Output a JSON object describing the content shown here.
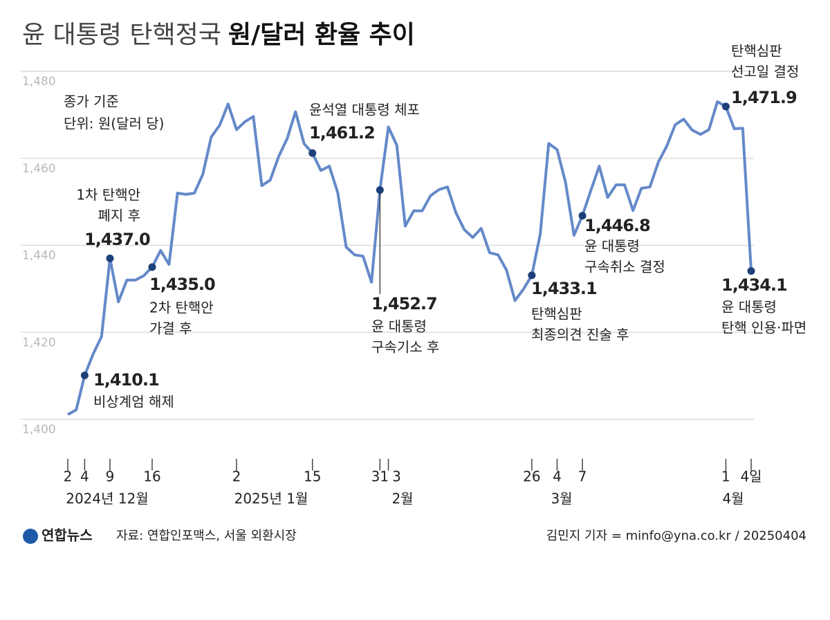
{
  "chart_data": {
    "type": "line",
    "title": {
      "light": "윤 대통령 탄핵정국",
      "bold": "원/달러 환율 추이"
    },
    "notes": [
      "종가 기준",
      "단위: 원(달러 당)"
    ],
    "categories": [
      "2",
      null,
      "4",
      null,
      null,
      "9",
      null,
      null,
      null,
      null,
      "16",
      null,
      null,
      null,
      null,
      null,
      null,
      null,
      null,
      null,
      "2",
      null,
      null,
      null,
      null,
      null,
      null,
      null,
      null,
      "15",
      null,
      null,
      null,
      null,
      null,
      null,
      null,
      "31",
      "3",
      null,
      null,
      null,
      null,
      null,
      null,
      null,
      null,
      null,
      null,
      null,
      null,
      null,
      null,
      null,
      null,
      "26",
      null,
      null,
      "4",
      null,
      null,
      "7",
      null,
      null,
      null,
      null,
      null,
      null,
      null,
      null,
      null,
      null,
      null,
      null,
      null,
      null,
      null,
      null,
      "1",
      null,
      null,
      "4일"
    ],
    "months": [
      "2024년 12월",
      "2025년 1월",
      "2월",
      "3월",
      "4월"
    ],
    "values": [
      1401.1,
      1402.2,
      1410.1,
      1415,
      1419,
      1437.0,
      1427,
      1432,
      1432,
      1433,
      1435.0,
      1438.8,
      1435.6,
      1452,
      1451.7,
      1452,
      1456.3,
      1464.9,
      1467.6,
      1472.5,
      1466.6,
      1468.4,
      1469.6,
      1453.7,
      1455,
      1460.4,
      1464.5,
      1470.7,
      1463.4,
      1461.2,
      1457.2,
      1458.2,
      1452.1,
      1439.6,
      1437.8,
      1437.5,
      1431.5,
      1452.7,
      1467.2,
      1463,
      1444.4,
      1447.9,
      1447.9,
      1451.4,
      1452.8,
      1453.4,
      1447.5,
      1443.6,
      1441.8,
      1443.9,
      1438.3,
      1437.8,
      1434.3,
      1427.3,
      1429.9,
      1433.1,
      1442.6,
      1463.4,
      1462,
      1454.4,
      1442.3,
      1446.8,
      1452.6,
      1458.2,
      1451,
      1453.9,
      1453.9,
      1448,
      1453.1,
      1453.4,
      1459.1,
      1462.8,
      1467.7,
      1469,
      1466.5,
      1465.5,
      1466.6,
      1473,
      1471.9,
      1466.8,
      1466.9,
      1434.1
    ],
    "value_labels": [
      null,
      null,
      "1,410.1",
      null,
      null,
      "1,437.0",
      null,
      null,
      null,
      null,
      "1,435.0",
      null,
      null,
      null,
      null,
      null,
      null,
      null,
      null,
      null,
      null,
      null,
      null,
      null,
      null,
      null,
      null,
      null,
      null,
      "1,461.2",
      null,
      null,
      null,
      null,
      null,
      null,
      null,
      "1,452.7",
      null,
      null,
      null,
      null,
      null,
      null,
      null,
      null,
      null,
      null,
      null,
      null,
      null,
      null,
      null,
      null,
      null,
      "1,433.1",
      null,
      null,
      null,
      null,
      null,
      "1,446.8",
      null,
      null,
      null,
      null,
      null,
      null,
      null,
      null,
      null,
      null,
      null,
      null,
      null,
      null,
      null,
      null,
      "1,471.9",
      null,
      null,
      "1,434.1"
    ],
    "annotations": [
      [
        "비상계엄 해제"
      ],
      [
        "1차 탄핵안",
        "폐지 후"
      ],
      [
        "2차 탄핵안",
        "가결 후"
      ],
      [
        "윤석열 대통령 체포"
      ],
      [
        "윤 대통령",
        "구속기소 후"
      ],
      [
        "탄핵심판",
        "최종의견 진술 후"
      ],
      [
        "윤 대통령",
        "구속취소 결정"
      ],
      [
        "탄핵심판",
        "선고일 결정"
      ],
      [
        "윤 대통령",
        "탄핵 인용·파면"
      ]
    ],
    "color": "#6489c9",
    "ylim": [
      1400,
      1480
    ],
    "yticks": [
      {
        "value": 1400,
        "label": "1,400"
      },
      {
        "value": 1420,
        "label": "1,420"
      },
      {
        "value": 1440,
        "label": "1,440"
      },
      {
        "value": 1460,
        "label": "1,460"
      },
      {
        "value": 1480,
        "label": "1,480"
      }
    ],
    "grid": true,
    "logo": "연합뉴스",
    "source": "자료: 연합인포맥스, 서울 외환시장",
    "credit": "김민지 기자 = minfo@yna.co.kr / 20250404"
  }
}
